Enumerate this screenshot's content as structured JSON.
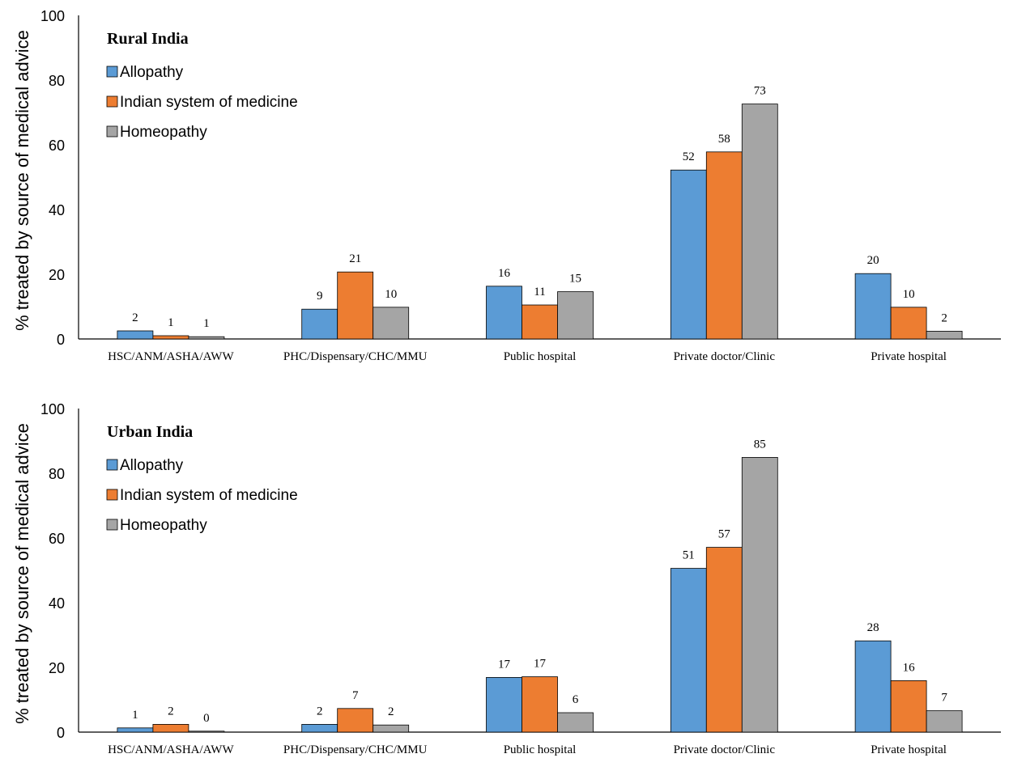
{
  "chart_data": [
    {
      "type": "bar",
      "title": "Rural India",
      "ylabel": "% treated by source of medical advice",
      "xlabel": "",
      "ylim": [
        0,
        100
      ],
      "yticks": [
        0,
        20,
        40,
        60,
        80,
        100
      ],
      "grid": false,
      "legend_position": "top-left",
      "categories": [
        "HSC/ANM/ASHA/AWW",
        "PHC/Dispensary/CHC/MMU",
        "Public hospital",
        "Private doctor/Clinic",
        "Private hospital"
      ],
      "series": [
        {
          "name": "Allopathy",
          "color": "#5b9bd5",
          "values": [
            2.5,
            9.2,
            16.3,
            52.2,
            20.2
          ],
          "labels": [
            "2",
            "9",
            "16",
            "52",
            "20"
          ]
        },
        {
          "name": "Indian system of medicine",
          "color": "#ed7d31",
          "values": [
            1.0,
            20.7,
            10.5,
            57.8,
            9.8
          ],
          "labels": [
            "1",
            "21",
            "11",
            "58",
            "10"
          ]
        },
        {
          "name": "Homeopathy",
          "color": "#a5a5a5",
          "values": [
            0.7,
            9.8,
            14.6,
            72.6,
            2.4
          ],
          "labels": [
            "1",
            "10",
            "15",
            "73",
            "2"
          ]
        }
      ]
    },
    {
      "type": "bar",
      "title": "Urban India",
      "ylabel": "% treated by source of medical advice",
      "xlabel": "",
      "ylim": [
        0,
        100
      ],
      "yticks": [
        0,
        20,
        40,
        60,
        80,
        100
      ],
      "grid": false,
      "legend_position": "top-left",
      "categories": [
        "HSC/ANM/ASHA/AWW",
        "PHC/Dispensary/CHC/MMU",
        "Public hospital",
        "Private doctor/Clinic",
        "Private hospital"
      ],
      "series": [
        {
          "name": "Allopathy",
          "color": "#5b9bd5",
          "values": [
            1.3,
            2.4,
            16.9,
            50.6,
            28.2
          ],
          "labels": [
            "1",
            "2",
            "17",
            "51",
            "28"
          ]
        },
        {
          "name": "Indian system of medicine",
          "color": "#ed7d31",
          "values": [
            2.4,
            7.3,
            17.1,
            57.1,
            15.9
          ],
          "labels": [
            "2",
            "7",
            "17",
            "57",
            "16"
          ]
        },
        {
          "name": "Homeopathy",
          "color": "#a5a5a5",
          "values": [
            0.3,
            2.2,
            6.0,
            84.9,
            6.6
          ],
          "labels": [
            "0",
            "2",
            "6",
            "85",
            "7"
          ]
        }
      ]
    }
  ]
}
